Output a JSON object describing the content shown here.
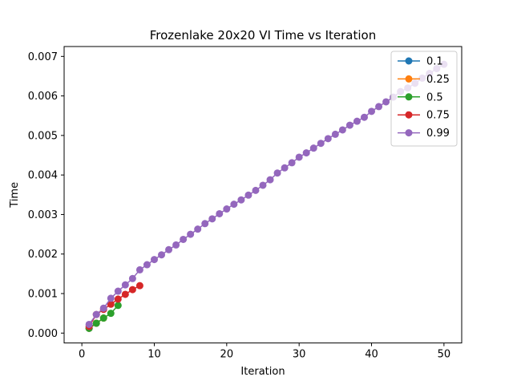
{
  "chart_data": {
    "type": "line",
    "title": "Frozenlake 20x20 VI Time vs Iteration",
    "xlabel": "Iteration",
    "ylabel": "Time",
    "xlim": [
      -2.45,
      52.45
    ],
    "ylim": [
      -0.00025,
      0.00725
    ],
    "xticks": [
      0,
      10,
      20,
      30,
      40,
      50
    ],
    "xtick_labels": [
      "0",
      "10",
      "20",
      "30",
      "40",
      "50"
    ],
    "yticks": [
      0.0,
      0.001,
      0.002,
      0.003,
      0.004,
      0.005,
      0.006,
      0.007
    ],
    "ytick_labels": [
      "0.000",
      "0.001",
      "0.002",
      "0.003",
      "0.004",
      "0.005",
      "0.006",
      "0.007"
    ],
    "grid": false,
    "legend_position": "top-right",
    "series": [
      {
        "name": "0.1",
        "color": "#1f77b4",
        "x": [
          1,
          2
        ],
        "y": [
          0.00012,
          0.00025
        ]
      },
      {
        "name": "0.25",
        "color": "#ff7f0e",
        "x": [
          1,
          2,
          3
        ],
        "y": [
          0.00012,
          0.00025,
          0.00038
        ]
      },
      {
        "name": "0.5",
        "color": "#2ca02c",
        "x": [
          1,
          2,
          3,
          4,
          5
        ],
        "y": [
          0.00012,
          0.00025,
          0.00038,
          0.0005,
          0.0007
        ]
      },
      {
        "name": "0.75",
        "color": "#d62728",
        "x": [
          1,
          2,
          3,
          4,
          5,
          6,
          7,
          8
        ],
        "y": [
          0.00017,
          0.00047,
          0.0006,
          0.00073,
          0.00086,
          0.00098,
          0.0011,
          0.0012
        ]
      },
      {
        "name": "0.99",
        "color": "#9467bd",
        "x": [
          1,
          2,
          3,
          4,
          5,
          6,
          7,
          8,
          9,
          10,
          11,
          12,
          13,
          14,
          15,
          16,
          17,
          18,
          19,
          20,
          21,
          22,
          23,
          24,
          25,
          26,
          27,
          28,
          29,
          30,
          31,
          32,
          33,
          34,
          35,
          36,
          37,
          38,
          39,
          40,
          41,
          42,
          43,
          44,
          45,
          46,
          47,
          48,
          49,
          50
        ],
        "y": [
          0.00022,
          0.00047,
          0.00063,
          0.00088,
          0.00106,
          0.00122,
          0.00138,
          0.0016,
          0.00173,
          0.00186,
          0.00198,
          0.00211,
          0.00223,
          0.00237,
          0.0025,
          0.00263,
          0.00277,
          0.00289,
          0.00302,
          0.00314,
          0.00326,
          0.00337,
          0.00349,
          0.00361,
          0.00374,
          0.00388,
          0.00405,
          0.00418,
          0.00431,
          0.00445,
          0.00456,
          0.00468,
          0.0048,
          0.00492,
          0.00503,
          0.00514,
          0.00526,
          0.00536,
          0.00546,
          0.00561,
          0.00573,
          0.00585,
          0.00597,
          0.00611,
          0.0062,
          0.00632,
          0.00645,
          0.00657,
          0.00669,
          0.0068
        ]
      }
    ]
  }
}
